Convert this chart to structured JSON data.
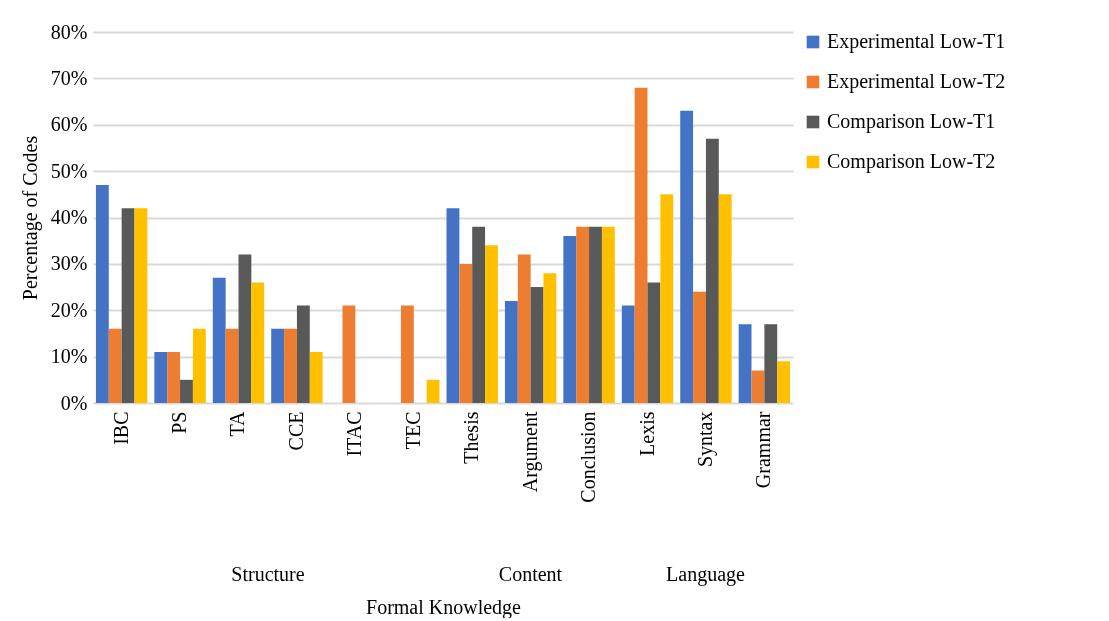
{
  "chart_data": {
    "type": "bar",
    "xlabel": "Formal Knowledge",
    "ylabel": "Percentage of Codes",
    "categories": [
      "IBC",
      "PS",
      "TA",
      "CCE",
      "ITAC",
      "TEC",
      "Thesis",
      "Argument",
      "Conclusion",
      "Lexis",
      "Syntax",
      "Grammar"
    ],
    "series": [
      {
        "name": "Experimental Low-T1",
        "color": "#4472c4",
        "values": [
          47,
          11,
          27,
          16,
          0,
          0,
          42,
          22,
          36,
          21,
          63,
          17
        ]
      },
      {
        "name": "Experimental Low-T2",
        "color": "#ed7d31",
        "values": [
          16,
          11,
          16,
          16,
          21,
          21,
          30,
          32,
          38,
          68,
          24,
          7
        ]
      },
      {
        "name": "Comparison Low-T1",
        "color": "#595959",
        "values": [
          42,
          5,
          32,
          21,
          0,
          0,
          38,
          25,
          38,
          26,
          57,
          17
        ]
      },
      {
        "name": "Comparison Low-T2",
        "color": "#ffc000",
        "values": [
          42,
          16,
          26,
          11,
          0,
          5,
          34,
          28,
          38,
          45,
          45,
          9
        ]
      }
    ],
    "ylim": [
      0,
      80
    ],
    "yticks": [
      {
        "value": 0,
        "label": "0%"
      },
      {
        "value": 10,
        "label": "10%"
      },
      {
        "value": 20,
        "label": "20%"
      },
      {
        "value": 30,
        "label": "30%"
      },
      {
        "value": 40,
        "label": "40%"
      },
      {
        "value": 50,
        "label": "50%"
      },
      {
        "value": 60,
        "label": "60%"
      },
      {
        "value": 70,
        "label": "70%"
      },
      {
        "value": 80,
        "label": "80%"
      }
    ],
    "grid": "y",
    "legend": "right",
    "annotations": [
      "Structure",
      "Content",
      "Language"
    ]
  }
}
